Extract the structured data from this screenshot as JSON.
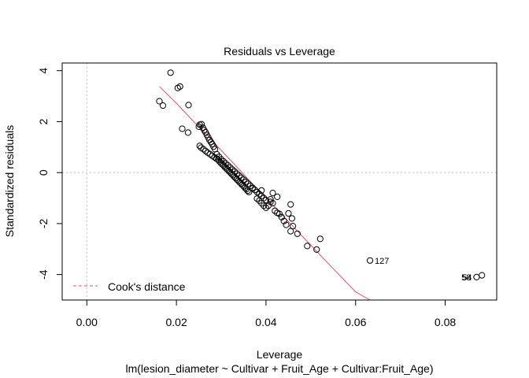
{
  "chart_data": {
    "type": "scatter",
    "title": "Residuals vs Leverage",
    "xlabel": "Leverage",
    "subtitle": "lm(lesion_diameter ~ Cultivar + Fruit_Age + Cultivar:Fruit_Age)",
    "ylabel": "Standardized residuals",
    "xlim": [
      -0.0055,
      0.0915
    ],
    "ylim": [
      -5.0,
      4.3
    ],
    "xticks": [
      0.0,
      0.02,
      0.04,
      0.06,
      0.08
    ],
    "xtick_labels": [
      "0.00",
      "0.02",
      "0.04",
      "0.06",
      "0.08"
    ],
    "yticks": [
      -4,
      -2,
      0,
      2,
      4
    ],
    "ytick_labels": [
      "-4",
      "-2",
      "0",
      "2",
      "4"
    ],
    "reference_lines": {
      "x": 0,
      "y": 0
    },
    "legend": {
      "label": "Cook's distance",
      "position": "bottom-left",
      "color": "#df536b"
    },
    "smooth_color": "#df536b",
    "smooth_line": {
      "x": [
        0.0162,
        0.02,
        0.024,
        0.027,
        0.03,
        0.033,
        0.036,
        0.04,
        0.045,
        0.05,
        0.055,
        0.06,
        0.0632
      ],
      "y": [
        3.38,
        2.72,
        1.97,
        1.45,
        0.87,
        0.31,
        -0.26,
        -0.99,
        -1.92,
        -2.85,
        -3.77,
        -4.68,
        -5.0
      ]
    },
    "points": {
      "x": [
        0.0187,
        0.0203,
        0.0208,
        0.0162,
        0.017,
        0.0213,
        0.0226,
        0.0227,
        0.025,
        0.0252,
        0.0256,
        0.0259,
        0.0262,
        0.0265,
        0.0268,
        0.0271,
        0.0274,
        0.0277,
        0.028,
        0.0283,
        0.0286,
        0.0252,
        0.0255,
        0.026,
        0.0265,
        0.027,
        0.0275,
        0.028,
        0.0285,
        0.0289,
        0.0293,
        0.0296,
        0.0299,
        0.0302,
        0.0305,
        0.0308,
        0.0311,
        0.0314,
        0.0317,
        0.032,
        0.0323,
        0.0326,
        0.0329,
        0.0332,
        0.0335,
        0.0338,
        0.0341,
        0.0344,
        0.0347,
        0.035,
        0.0353,
        0.0356,
        0.0359,
        0.0362,
        0.029,
        0.0295,
        0.03,
        0.0305,
        0.031,
        0.0315,
        0.032,
        0.0325,
        0.033,
        0.0335,
        0.034,
        0.0345,
        0.035,
        0.0355,
        0.036,
        0.0365,
        0.037,
        0.0375,
        0.038,
        0.0385,
        0.039,
        0.0395,
        0.04,
        0.038,
        0.0385,
        0.039,
        0.0395,
        0.04,
        0.0405,
        0.041,
        0.0415,
        0.042,
        0.0425,
        0.043,
        0.0435,
        0.044,
        0.0445,
        0.045,
        0.0455,
        0.046,
        0.047,
        0.0415,
        0.0425,
        0.0455,
        0.0458,
        0.0492,
        0.0513,
        0.0521,
        0.0632,
        0.087,
        0.0882,
        0.037,
        0.039,
        0.041
      ],
      "y": [
        3.92,
        3.32,
        3.38,
        2.8,
        2.63,
        1.72,
        1.57,
        2.65,
        1.8,
        1.88,
        1.9,
        1.76,
        1.66,
        1.58,
        1.48,
        1.38,
        1.28,
        1.2,
        1.12,
        1.02,
        0.92,
        1.05,
        0.98,
        0.92,
        0.85,
        0.78,
        0.72,
        0.66,
        0.6,
        0.55,
        0.5,
        0.44,
        0.38,
        0.33,
        0.28,
        0.22,
        0.17,
        0.12,
        0.06,
        0.01,
        -0.05,
        -0.1,
        -0.16,
        -0.21,
        -0.27,
        -0.32,
        -0.38,
        -0.43,
        -0.49,
        -0.54,
        -0.6,
        -0.65,
        -0.71,
        -0.76,
        0.72,
        0.62,
        0.52,
        0.44,
        0.36,
        0.28,
        0.2,
        0.12,
        0.04,
        -0.04,
        -0.12,
        -0.2,
        -0.28,
        -0.36,
        -0.44,
        -0.52,
        -0.6,
        -0.68,
        -0.76,
        -0.84,
        -0.92,
        -1.0,
        -1.08,
        -1.02,
        -1.1,
        -1.2,
        -1.3,
        -1.38,
        -1.3,
        -1.05,
        -1.2,
        -1.5,
        -1.58,
        -1.62,
        -1.75,
        -1.9,
        -2.05,
        -1.6,
        -1.25,
        -2.1,
        -2.4,
        -0.8,
        -0.95,
        -2.3,
        -1.8,
        -2.88,
        -3.02,
        -2.6,
        -3.45,
        -4.1,
        -4.03,
        -0.62,
        -0.7,
        -1.15
      ]
    },
    "point_labels": [
      {
        "x": 0.0632,
        "y": -3.45,
        "text": "127"
      },
      {
        "x": 0.087,
        "y": -4.1,
        "text": "58"
      },
      {
        "x": 0.0872,
        "y": -4.1,
        "text": "54"
      }
    ]
  }
}
